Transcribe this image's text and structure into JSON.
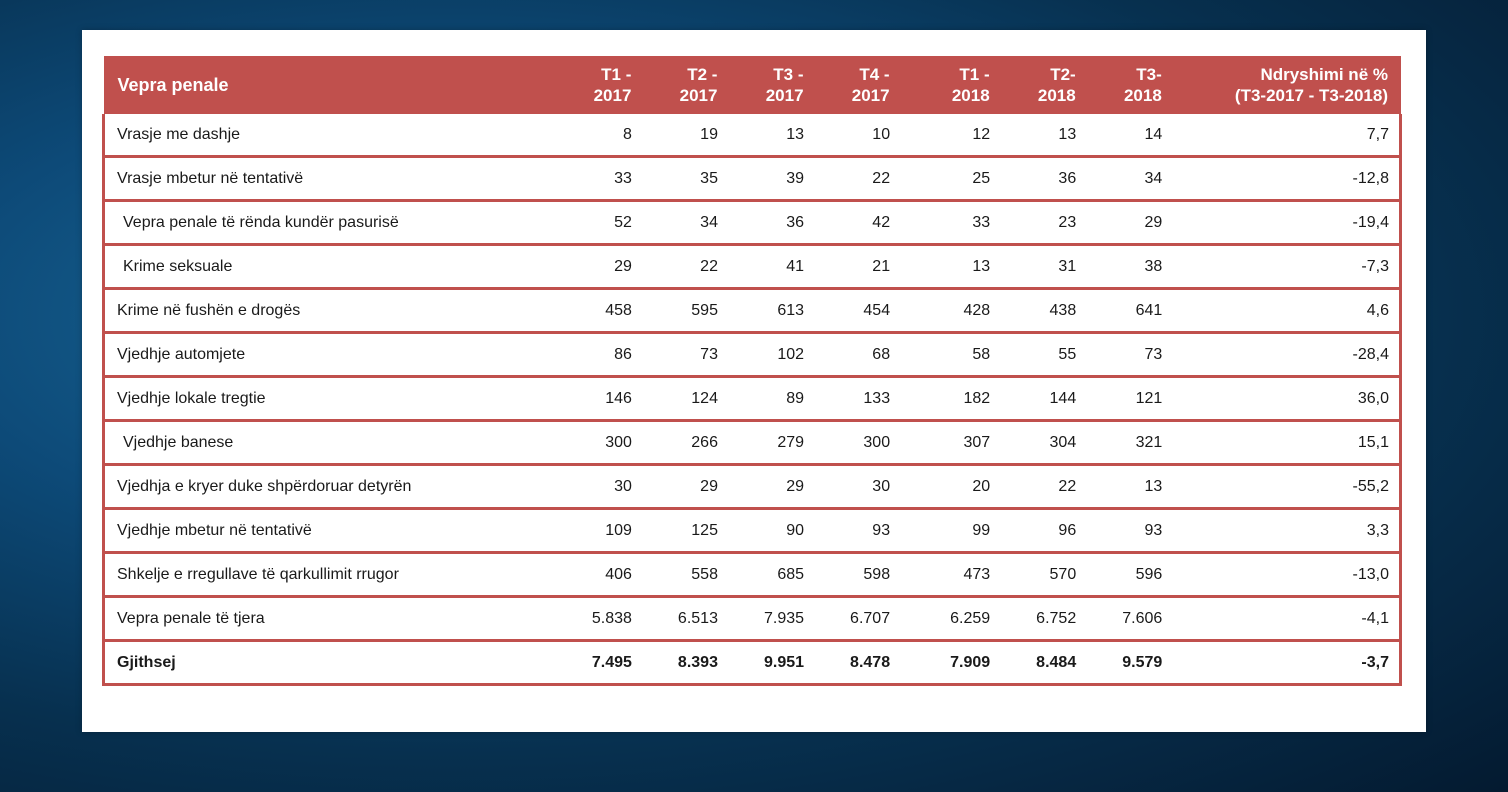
{
  "header": {
    "name": "Vepra penale",
    "cols": [
      {
        "line1": "T1 -",
        "line2": "2017"
      },
      {
        "line1": "T2 -",
        "line2": "2017"
      },
      {
        "line1": "T3 -",
        "line2": "2017"
      },
      {
        "line1": "T4 -",
        "line2": "2017"
      },
      {
        "line1": "T1 -",
        "line2": "2018"
      },
      {
        "line1": "T2-",
        "line2": "2018"
      },
      {
        "line1": "T3-",
        "line2": "2018"
      }
    ],
    "pct_line1": "Ndryshimi  në %",
    "pct_line2": "(T3-2017 - T3-2018)"
  },
  "rows": [
    {
      "name": "Vrasje me dashje",
      "values": [
        "8",
        "19",
        "13",
        "10",
        "12",
        "13",
        "14"
      ],
      "pct": "7,7"
    },
    {
      "name": "Vrasje mbetur në tentativë",
      "values": [
        "33",
        "35",
        "39",
        "22",
        "25",
        "36",
        "34"
      ],
      "pct": "-12,8"
    },
    {
      "name": "Vepra penale të rënda kundër pasurisë",
      "values": [
        "52",
        "34",
        "36",
        "42",
        "33",
        "23",
        "29"
      ],
      "pct": "-19,4"
    },
    {
      "name": "Krime seksuale",
      "values": [
        "29",
        "22",
        "41",
        "21",
        "13",
        "31",
        "38"
      ],
      "pct": "-7,3"
    },
    {
      "name": "Krime në fushën e drogës",
      "values": [
        "458",
        "595",
        "613",
        "454",
        "428",
        "438",
        "641"
      ],
      "pct": "4,6"
    },
    {
      "name": "Vjedhje automjete",
      "values": [
        "86",
        "73",
        "102",
        "68",
        "58",
        "55",
        "73"
      ],
      "pct": "-28,4"
    },
    {
      "name": "Vjedhje lokale tregtie",
      "values": [
        "146",
        "124",
        "89",
        "133",
        "182",
        "144",
        "121"
      ],
      "pct": "36,0"
    },
    {
      "name": "Vjedhje banese",
      "values": [
        "300",
        "266",
        "279",
        "300",
        "307",
        "304",
        "321"
      ],
      "pct": "15,1"
    },
    {
      "name": "Vjedhja e kryer duke shpërdoruar detyrën",
      "values": [
        "30",
        "29",
        "29",
        "30",
        "20",
        "22",
        "13"
      ],
      "pct": "-55,2"
    },
    {
      "name": "Vjedhje mbetur në tentativë",
      "values": [
        "109",
        "125",
        "90",
        "93",
        "99",
        "96",
        "93"
      ],
      "pct": "3,3"
    },
    {
      "name": "Shkelje e rregullave të qarkullimit rrugor",
      "values": [
        "406",
        "558",
        "685",
        "598",
        "473",
        "570",
        "596"
      ],
      "pct": "-13,0"
    },
    {
      "name": "Vepra penale të tjera",
      "values": [
        "5.838",
        "6.513",
        "7.935",
        "6.707",
        "6.259",
        "6.752",
        "7.606"
      ],
      "pct": "-4,1"
    },
    {
      "name": "Gjithsej",
      "values": [
        "7.495",
        "8.393",
        "9.951",
        "8.478",
        "7.909",
        "8.484",
        "9.579"
      ],
      "pct": "-3,7"
    }
  ]
}
